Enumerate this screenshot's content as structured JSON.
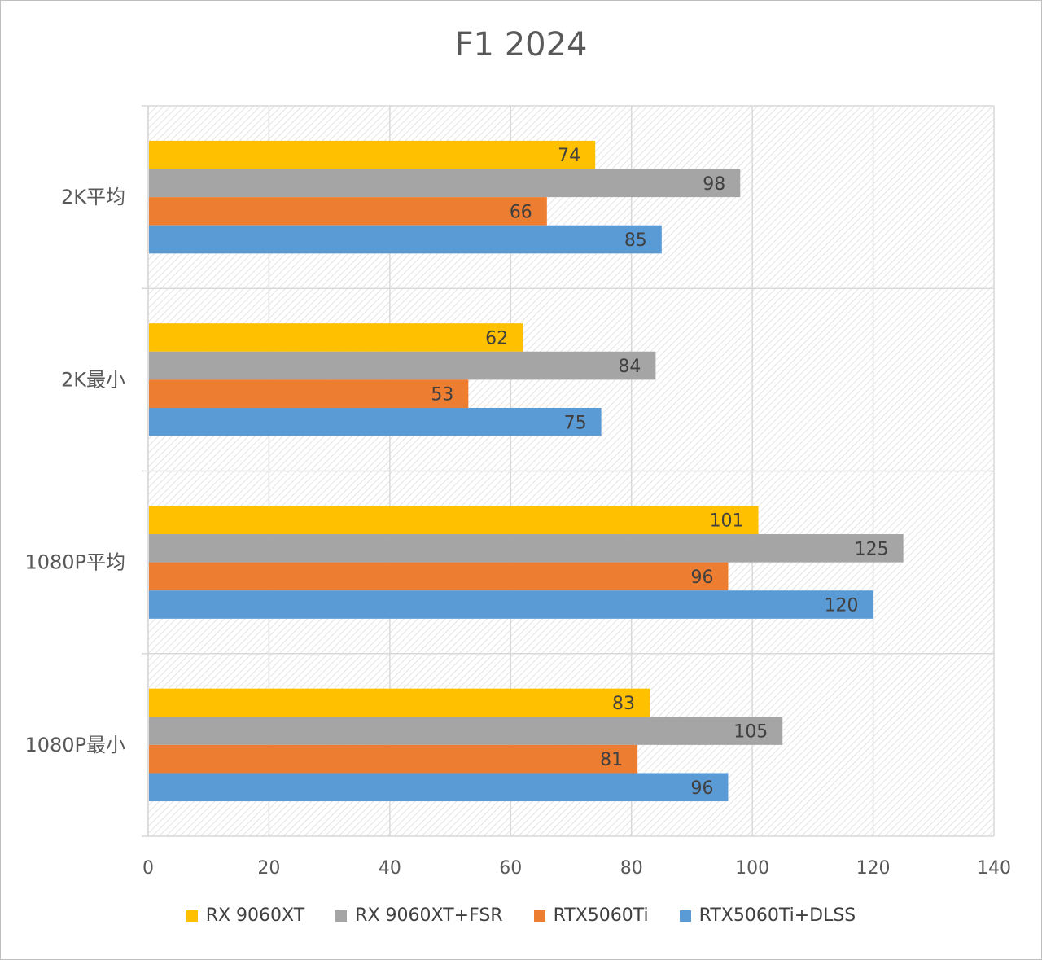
{
  "chart_data": {
    "type": "bar",
    "orientation": "horizontal",
    "title": "F1 2024",
    "xlabel": "",
    "ylabel": "",
    "xlim": [
      0,
      140
    ],
    "x_ticks": [
      "0",
      "20",
      "40",
      "60",
      "80",
      "100",
      "120",
      "140"
    ],
    "grid": true,
    "legend_position": "bottom",
    "categories": [
      "2K平均",
      "2K最小",
      "1080P平均",
      "1080P最小"
    ],
    "series": [
      {
        "name": "RX 9060XT",
        "color": "#ffc000",
        "values": [
          74,
          62,
          101,
          83
        ]
      },
      {
        "name": "RX 9060XT+FSR",
        "color": "#a5a5a5",
        "values": [
          98,
          84,
          125,
          105
        ]
      },
      {
        "name": "RTX5060Ti",
        "color": "#ed7d31",
        "values": [
          66,
          53,
          96,
          81
        ]
      },
      {
        "name": "RTX5060Ti+DLSS",
        "color": "#5b9bd5",
        "values": [
          85,
          75,
          120,
          96
        ]
      }
    ]
  }
}
